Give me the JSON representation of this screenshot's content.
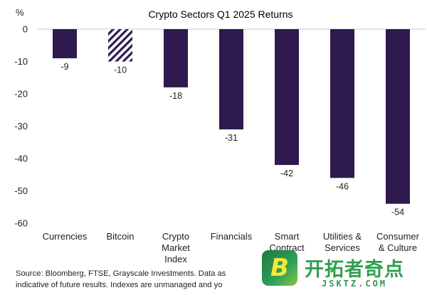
{
  "chart_data": {
    "type": "bar",
    "title": "Crypto Sectors Q1 2025 Returns",
    "y_unit_label": "%",
    "categories": [
      [
        "Currencies"
      ],
      [
        "Bitcoin"
      ],
      [
        "Crypto",
        "Market",
        "Index"
      ],
      [
        "Financials"
      ],
      [
        "Smart",
        "Contract"
      ],
      [
        "Utilities &",
        "Services"
      ],
      [
        "Consumer",
        "& Culture"
      ]
    ],
    "values": [
      -9,
      -10,
      -18,
      -31,
      -42,
      -46,
      -54
    ],
    "data_labels": [
      "-9",
      "-10",
      "-18",
      "-31",
      "-42",
      "-46",
      "-54"
    ],
    "hatched": [
      false,
      true,
      false,
      false,
      false,
      false,
      false
    ],
    "ylim": [
      -60,
      0
    ],
    "yticks": [
      0,
      -10,
      -20,
      -30,
      -40,
      -50,
      -60
    ],
    "bar_color": "#2e1a4f",
    "grid": false,
    "legend": "none"
  },
  "source_lines": [
    "Source: Bloomberg, FTSE, Grayscale Investments. Data as",
    "indicative of future results. Indexes are unmanaged and yo"
  ],
  "watermark": {
    "badge_letter": "B",
    "brand_cn": "开拓者奇点",
    "url": "JSKTZ.COM"
  }
}
